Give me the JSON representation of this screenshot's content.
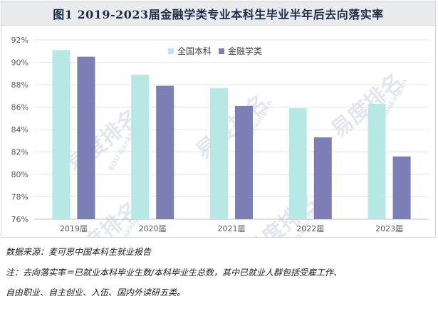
{
  "chart_data": {
    "type": "bar",
    "title": "图1 2019-2023届金融学类专业本科生毕业半年后去向落实率",
    "categories": [
      "2019届",
      "2020届",
      "2021届",
      "2022届",
      "2023届"
    ],
    "series": [
      {
        "name": "全国本科",
        "color": "#b8e8e5",
        "values": [
          91.1,
          88.9,
          87.7,
          85.9,
          86.3
        ]
      },
      {
        "name": "金融学类",
        "color": "#7b7fb5",
        "values": [
          90.5,
          87.9,
          86.1,
          83.3,
          81.6
        ]
      }
    ],
    "yticks": [
      "76%",
      "78%",
      "80%",
      "82%",
      "84%",
      "86%",
      "88%",
      "90%",
      "92%"
    ],
    "ylim": [
      76,
      92
    ],
    "grid": true,
    "legend_position": "top-center"
  },
  "notes": {
    "source": "数据来源：麦可思中国本科生就业报告",
    "note_line1": "注：去向落实率＝已就业本科毕业生数/本科毕业生总数，其中已就业人群包括受雇工作、",
    "note_line2": "自由职业、自主创业、入伍、国内外读研五类。"
  },
  "watermark": {
    "brand_text": "易度排名",
    "url_text": "EDU Ranking.cn"
  }
}
